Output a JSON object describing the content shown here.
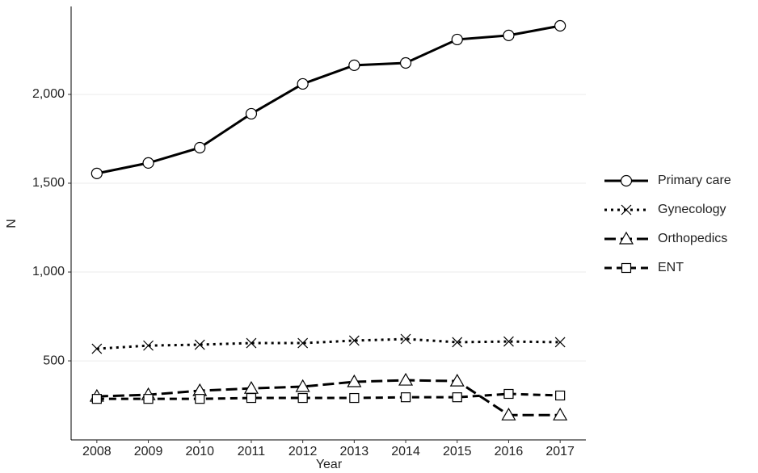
{
  "chart_data": {
    "type": "line",
    "x_label": "Year",
    "y_label": "N",
    "x": [
      2008,
      2009,
      2010,
      2011,
      2012,
      2013,
      2014,
      2015,
      2016,
      2017
    ],
    "xlim": [
      2007.5,
      2017.5
    ],
    "xticks": [
      2008,
      2009,
      2010,
      2011,
      2012,
      2013,
      2014,
      2015,
      2016,
      2017
    ],
    "ylim": [
      55,
      2495
    ],
    "yticks": [
      {
        "value": 500,
        "label": "500"
      },
      {
        "value": 1000,
        "label": "1,000"
      },
      {
        "value": 1500,
        "label": "1,500"
      },
      {
        "value": 2000,
        "label": "2,000"
      }
    ],
    "grid": true,
    "legend": "right",
    "series": [
      {
        "name": "Primary care",
        "color": "#000000",
        "dash": "solid",
        "marker": "circle",
        "values": [
          1555,
          1614,
          1700,
          1891,
          2059,
          2164,
          2177,
          2309,
          2332,
          2386
        ]
      },
      {
        "name": "Gynecology",
        "color": "#000000",
        "dash": "dotted",
        "marker": "x",
        "values": [
          568,
          586,
          591,
          600,
          600,
          614,
          623,
          605,
          609,
          605
        ]
      },
      {
        "name": "Orthopedics",
        "color": "#000000",
        "dash": "longdash",
        "marker": "triangle",
        "values": [
          300,
          309,
          332,
          345,
          355,
          382,
          391,
          386,
          195,
          195
        ]
      },
      {
        "name": "ENT",
        "color": "#000000",
        "dash": "dashed",
        "marker": "square",
        "values": [
          286,
          286,
          286,
          291,
          291,
          291,
          295,
          295,
          314,
          305
        ]
      }
    ]
  }
}
